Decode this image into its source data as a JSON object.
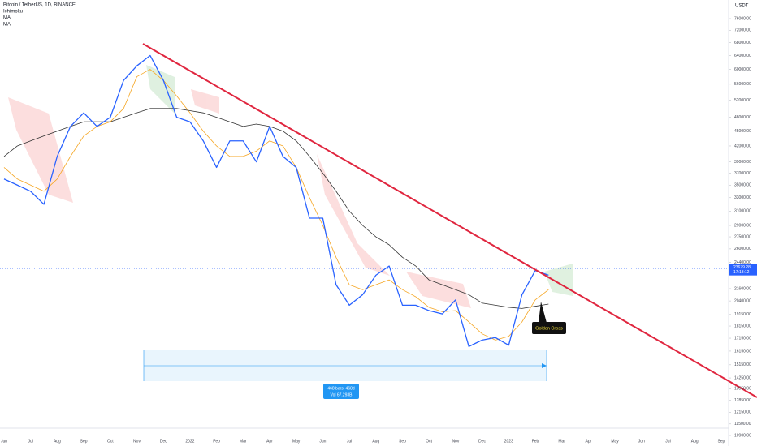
{
  "chart_data": {
    "type": "line",
    "title": "Bitcoin / TetherUS, 1D, BINANCE",
    "indicators": [
      "Ichimoku",
      "MA",
      "MA"
    ],
    "currency": "USDT",
    "log_scale": true,
    "categories": [
      "Jun",
      null,
      "Jul",
      null,
      "Aug",
      null,
      "Sep",
      null,
      "Oct",
      null,
      "Nov",
      null,
      "Dec",
      null,
      "2022",
      null,
      "Feb",
      null,
      "Mar",
      null,
      "Apr",
      null,
      "May",
      null,
      "Jun",
      null,
      "Jul",
      null,
      "Aug",
      null,
      "Sep",
      null,
      "Oct",
      null,
      "Nov",
      null,
      "Dec",
      null,
      "2023",
      null,
      "Feb",
      null,
      "Mar",
      null,
      "Apr",
      null,
      "May",
      null,
      "Jun",
      null,
      "Jul",
      null,
      "Aug",
      null,
      "Sep",
      null
    ],
    "series": [
      {
        "name": "BTCUSDT",
        "color": "#2962ff",
        "width": 1.3,
        "values": [
          36000,
          35000,
          34000,
          32000,
          40000,
          46000,
          49000,
          46000,
          48000,
          57000,
          61000,
          64000,
          57000,
          48000,
          47000,
          43000,
          38000,
          43000,
          43000,
          39000,
          46000,
          40000,
          38000,
          30000,
          30000,
          22000,
          20000,
          21000,
          23000,
          24000,
          20000,
          20000,
          19500,
          19200,
          20500,
          16500,
          17000,
          17200,
          16600,
          21000,
          23500,
          23000,
          null,
          null,
          null,
          null,
          null,
          null,
          null,
          null,
          null,
          null,
          null,
          null,
          null,
          null
        ]
      },
      {
        "name": "MA",
        "color": "#f5a623",
        "width": 0.8,
        "values": [
          38000,
          36000,
          35000,
          34000,
          36000,
          40000,
          44000,
          46000,
          47000,
          50000,
          58000,
          60000,
          57000,
          53000,
          49000,
          45000,
          42000,
          40000,
          40000,
          41000,
          43000,
          42000,
          38000,
          33000,
          29000,
          25000,
          22000,
          21500,
          22000,
          22500,
          21500,
          20800,
          19800,
          19400,
          19500,
          18500,
          17500,
          17000,
          17300,
          18500,
          20500,
          21500,
          null,
          null,
          null,
          null,
          null,
          null,
          null,
          null,
          null,
          null,
          null,
          null,
          null,
          null
        ]
      },
      {
        "name": "MA",
        "color": "#333333",
        "width": 0.8,
        "values": [
          40000,
          42000,
          43000,
          44000,
          45000,
          46000,
          47000,
          47000,
          47000,
          48000,
          49000,
          50000,
          50000,
          50000,
          49500,
          49000,
          48000,
          47000,
          46000,
          46500,
          46000,
          45000,
          43000,
          40000,
          37000,
          34000,
          31000,
          29000,
          27500,
          26500,
          25000,
          24000,
          22500,
          22000,
          21500,
          21000,
          20200,
          20000,
          19800,
          19700,
          19900,
          20100,
          null,
          null,
          null,
          null,
          null,
          null,
          null,
          null,
          null,
          null,
          null,
          null,
          null,
          null
        ]
      }
    ],
    "ylim": [
      10900,
      76000
    ],
    "yticks": [
      {
        "value": 76000,
        "label": "76000.00"
      },
      {
        "value": 72000,
        "label": "72000.00"
      },
      {
        "value": 68000,
        "label": "68000.00"
      },
      {
        "value": 64000,
        "label": "64000.00"
      },
      {
        "value": 60000,
        "label": "60000.00"
      },
      {
        "value": 56000,
        "label": "56000.00"
      },
      {
        "value": 52000,
        "label": "52000.00"
      },
      {
        "value": 48000,
        "label": "48000.00"
      },
      {
        "value": 45000,
        "label": "45000.00"
      },
      {
        "value": 42000,
        "label": "42000.00"
      },
      {
        "value": 39000,
        "label": "39000.00"
      },
      {
        "value": 37000,
        "label": "37000.00"
      },
      {
        "value": 35000,
        "label": "35000.00"
      },
      {
        "value": 33000,
        "label": "33000.00"
      },
      {
        "value": 31000,
        "label": "31000.00"
      },
      {
        "value": 29000,
        "label": "29000.00"
      },
      {
        "value": 27500,
        "label": "27500.00"
      },
      {
        "value": 26000,
        "label": "26000.00"
      },
      {
        "value": 24400,
        "label": "24400.00"
      },
      {
        "value": 21600,
        "label": "21600.00"
      },
      {
        "value": 20400,
        "label": "20400.00"
      },
      {
        "value": 19150,
        "label": "19150.00"
      },
      {
        "value": 18150,
        "label": "18150.00"
      },
      {
        "value": 17150,
        "label": "17150.00"
      },
      {
        "value": 16150,
        "label": "16150.00"
      },
      {
        "value": 15150,
        "label": "15150.00"
      },
      {
        "value": 14250,
        "label": "14250.00"
      },
      {
        "value": 13550,
        "label": "13550.00"
      },
      {
        "value": 12850,
        "label": "12850.00"
      },
      {
        "value": 12150,
        "label": "12150.00"
      },
      {
        "value": 11500,
        "label": "11500.00"
      },
      {
        "value": 10900,
        "label": "10900.00"
      }
    ],
    "last_price": {
      "value": 23679.28,
      "label": "23679.28"
    },
    "countdown": "17:13:12",
    "annotation": "Golden Cross",
    "measure": {
      "bars": "468 bars, 468d",
      "volume": "Vol 67.293B"
    }
  }
}
